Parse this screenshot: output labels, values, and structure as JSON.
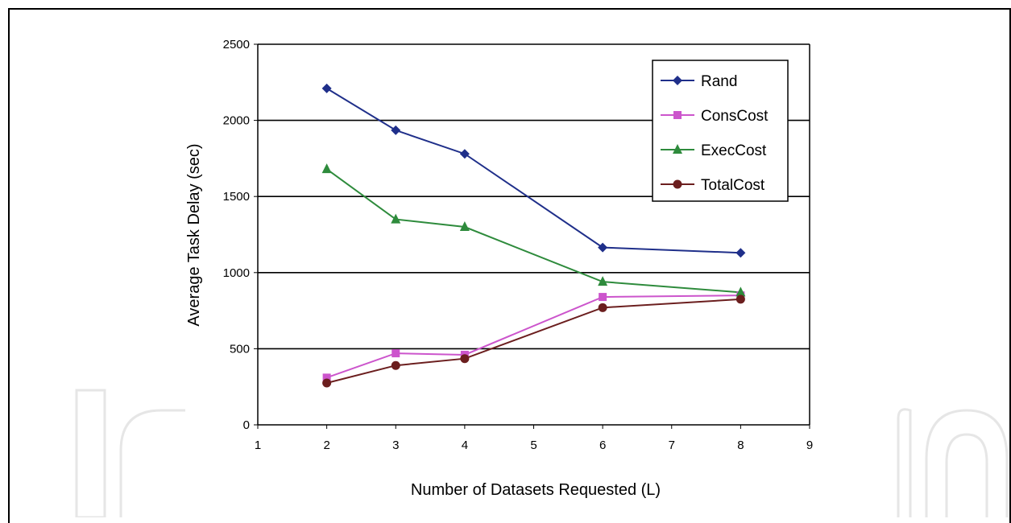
{
  "chart_data": {
    "type": "line",
    "title": "",
    "xlabel": "Number of Datasets Requested (L)",
    "ylabel": "Average Task Delay (sec)",
    "xlim": [
      1,
      9
    ],
    "ylim": [
      0,
      2500
    ],
    "x_ticks": [
      1,
      2,
      3,
      4,
      5,
      6,
      7,
      8,
      9
    ],
    "y_ticks": [
      0,
      500,
      1000,
      1500,
      2000,
      2500
    ],
    "grid": "horizontal",
    "legend": "top-right",
    "x": [
      2,
      3,
      4,
      6,
      8
    ],
    "series": [
      {
        "name": "Rand",
        "values": [
          2210,
          1935,
          1780,
          1165,
          1130
        ],
        "color": "#1f2f8a",
        "marker": "diamond"
      },
      {
        "name": "ConsCost",
        "values": [
          310,
          470,
          460,
          840,
          850
        ],
        "color": "#cc55cc",
        "marker": "square"
      },
      {
        "name": "ExecCost",
        "values": [
          1680,
          1350,
          1300,
          940,
          870
        ],
        "color": "#2e8b3c",
        "marker": "triangle"
      },
      {
        "name": "TotalCost",
        "values": [
          275,
          390,
          435,
          770,
          825
        ],
        "color": "#6b1e1e",
        "marker": "circle"
      }
    ]
  }
}
